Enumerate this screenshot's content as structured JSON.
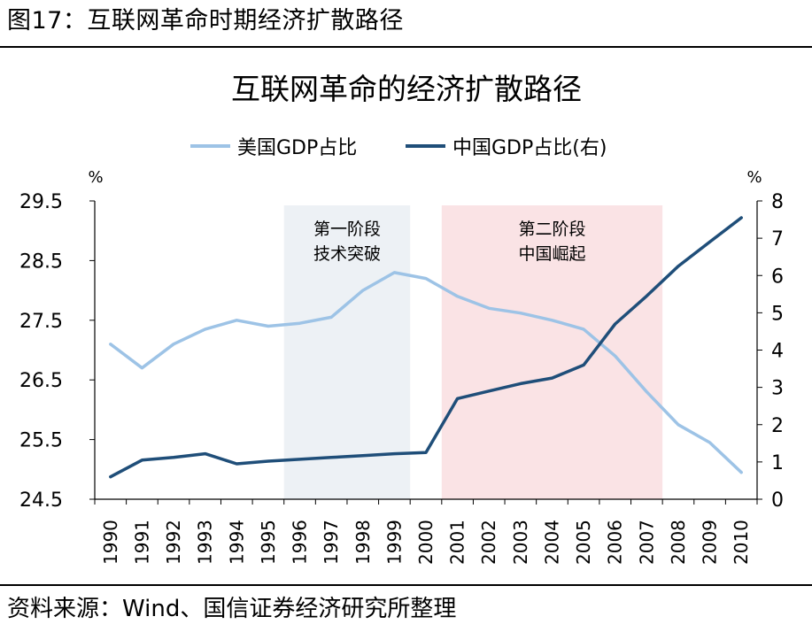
{
  "figure_label": "图17：互联网革命时期经济扩散路径",
  "source_note": "资料来源：Wind、国信证券经济研究所整理",
  "chart_data": {
    "type": "line",
    "title": "互联网革命的经济扩散路径",
    "x": [
      "1990",
      "1991",
      "1992",
      "1993",
      "1994",
      "1995",
      "1996",
      "1997",
      "1998",
      "1999",
      "2000",
      "2001",
      "2002",
      "2003",
      "2004",
      "2005",
      "2006",
      "2007",
      "2008",
      "2009",
      "2010"
    ],
    "series": [
      {
        "name": "美国GDP占比",
        "axis": "left",
        "color": "#9dc3e6",
        "values": [
          27.1,
          26.7,
          27.1,
          27.35,
          27.5,
          27.4,
          27.45,
          27.55,
          28.0,
          28.3,
          28.2,
          27.9,
          27.7,
          27.62,
          27.5,
          27.35,
          26.9,
          26.3,
          25.75,
          25.45,
          24.95
        ]
      },
      {
        "name": "中国GDP占比(右)",
        "axis": "right",
        "color": "#1f4e79",
        "values": [
          0.6,
          1.05,
          1.12,
          1.22,
          0.95,
          1.02,
          1.07,
          1.12,
          1.17,
          1.22,
          1.25,
          2.7,
          2.9,
          3.1,
          3.25,
          3.6,
          4.7,
          5.45,
          6.25,
          6.9,
          7.55
        ]
      }
    ],
    "y_left": {
      "unit": "%",
      "ticks": [
        "29.5",
        "28.5",
        "27.5",
        "26.5",
        "25.5",
        "24.5"
      ],
      "range": [
        24.5,
        29.5
      ]
    },
    "y_right": {
      "unit": "%",
      "ticks": [
        "8",
        "7",
        "6",
        "5",
        "4",
        "3",
        "2",
        "1",
        "0"
      ],
      "range": [
        0,
        8
      ]
    },
    "phases": [
      {
        "lines": [
          "第一阶段",
          "技术突破"
        ],
        "from": "1995.5",
        "to": "1999.5",
        "color": "#edf1f5"
      },
      {
        "lines": [
          "第二阶段",
          "中国崛起"
        ],
        "from": "2000.5",
        "to": "2007.5",
        "color": "#fae3e5"
      }
    ],
    "legend_position": "top",
    "grid": false
  }
}
